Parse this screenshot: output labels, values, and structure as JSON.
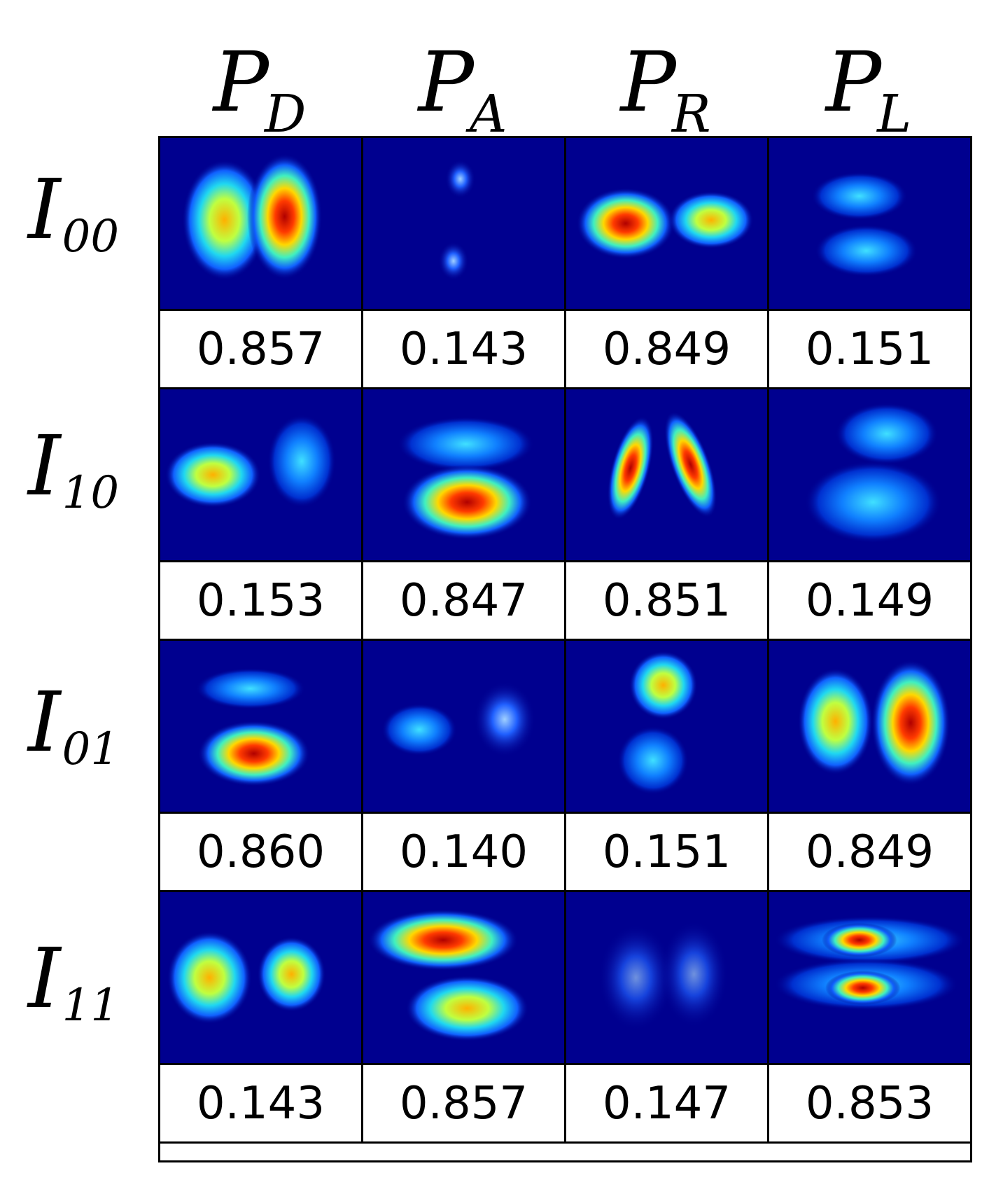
{
  "columns": [
    {
      "symbol": "P",
      "subscript": "D"
    },
    {
      "symbol": "P",
      "subscript": "A"
    },
    {
      "symbol": "P",
      "subscript": "R"
    },
    {
      "symbol": "P",
      "subscript": "L"
    }
  ],
  "rows": [
    {
      "symbol": "I",
      "subscript": "00",
      "values": [
        "0.857",
        "0.143",
        "0.849",
        "0.151"
      ]
    },
    {
      "symbol": "I",
      "subscript": "10",
      "values": [
        "0.153",
        "0.847",
        "0.851",
        "0.149"
      ]
    },
    {
      "symbol": "I",
      "subscript": "01",
      "values": [
        "0.860",
        "0.140",
        "0.151",
        "0.849"
      ]
    },
    {
      "symbol": "I",
      "subscript": "11",
      "values": [
        "0.143",
        "0.857",
        "0.147",
        "0.853"
      ]
    }
  ],
  "image_description_icons": [
    "two-lobes-horizontal",
    "two-lobes-vertical",
    "two-lobes-horizontal",
    "two-lobes-vertical",
    "two-lobes-horizontal",
    "two-lobes-vertical",
    "two-lobes-horizontal",
    "two-lobes-vertical",
    "two-lobes-vertical",
    "two-lobes-horizontal",
    "two-lobes-vertical",
    "two-lobes-horizontal",
    "two-lobes-horizontal",
    "two-lobes-vertical",
    "two-lobes-horizontal",
    "two-lobes-vertical"
  ],
  "colors": {
    "background_field": "#00008f",
    "border": "#000000"
  }
}
